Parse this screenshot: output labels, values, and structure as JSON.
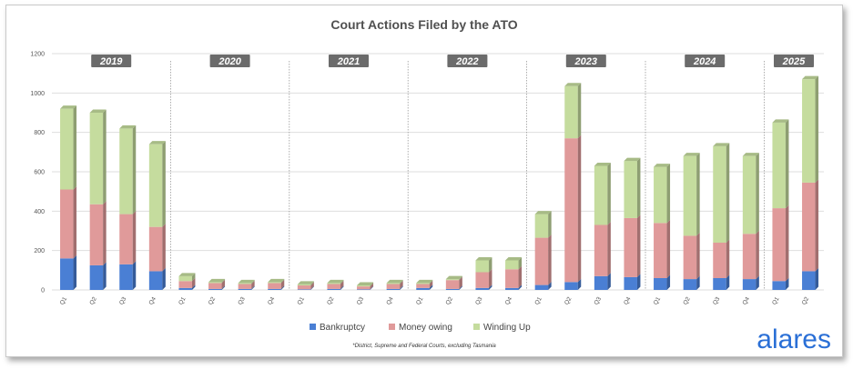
{
  "chart_data": {
    "type": "bar",
    "stacked": true,
    "title": "Court Actions Filed by the ATO",
    "footnote": "*District, Supreme and Federal Courts, excluding Tasmania",
    "brand": "alares",
    "ylim": [
      0,
      1200
    ],
    "yticks": [
      0,
      200,
      400,
      600,
      800,
      1000,
      1200
    ],
    "grid": true,
    "legend_position": "bottom",
    "groups": [
      {
        "year": "2019",
        "quarters": [
          "Q1",
          "Q2",
          "Q3",
          "Q4"
        ]
      },
      {
        "year": "2020",
        "quarters": [
          "Q1",
          "Q2",
          "Q3",
          "Q4"
        ]
      },
      {
        "year": "2021",
        "quarters": [
          "Q1",
          "Q2",
          "Q3",
          "Q4"
        ]
      },
      {
        "year": "2022",
        "quarters": [
          "Q1",
          "Q2",
          "Q3",
          "Q4"
        ]
      },
      {
        "year": "2023",
        "quarters": [
          "Q1",
          "Q2",
          "Q3",
          "Q4"
        ]
      },
      {
        "year": "2024",
        "quarters": [
          "Q1",
          "Q2",
          "Q3",
          "Q4"
        ]
      },
      {
        "year": "2025",
        "quarters": [
          "Q1",
          "Q2"
        ]
      }
    ],
    "series": [
      {
        "name": "Bankruptcy",
        "color": "#4a7fd4",
        "values": [
          160,
          125,
          130,
          95,
          10,
          5,
          5,
          5,
          3,
          5,
          3,
          5,
          10,
          5,
          10,
          10,
          25,
          40,
          70,
          65,
          60,
          55,
          60,
          55,
          45,
          95
        ]
      },
      {
        "name": "Money owing",
        "color": "#e09a9a",
        "values": [
          350,
          310,
          255,
          225,
          35,
          30,
          25,
          30,
          20,
          25,
          15,
          25,
          20,
          45,
          80,
          95,
          240,
          730,
          260,
          300,
          280,
          220,
          180,
          230,
          370,
          450
        ]
      },
      {
        "name": "Winding Up",
        "color": "#c5dc9e",
        "values": [
          410,
          465,
          435,
          420,
          25,
          5,
          5,
          5,
          5,
          5,
          5,
          5,
          5,
          5,
          60,
          45,
          120,
          265,
          300,
          290,
          285,
          405,
          490,
          395,
          435,
          525
        ]
      }
    ]
  }
}
